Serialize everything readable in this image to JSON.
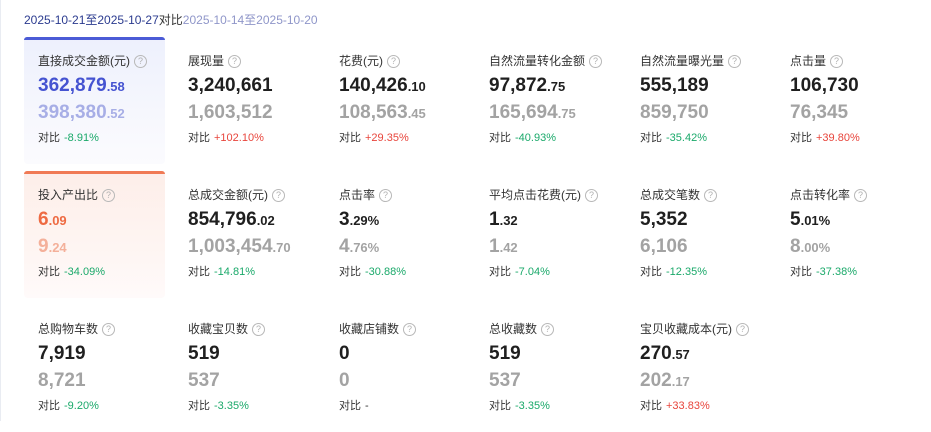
{
  "date_range": {
    "current": "2025-10-21至2025-10-27",
    "vs_label": "对比",
    "previous": "2025-10-14至2025-10-20"
  },
  "compare_label": "对比",
  "metrics": [
    {
      "title": "直接成交金额(元)",
      "cur_int": "362,879",
      "cur_dec": ".58",
      "prev_int": "398,380",
      "prev_dec": ".52",
      "delta": "-8.91%",
      "dir": "down",
      "selected": "blue"
    },
    {
      "title": "展现量",
      "cur_int": "3,240,661",
      "cur_dec": "",
      "prev_int": "1,603,512",
      "prev_dec": "",
      "delta": "+102.10%",
      "dir": "up",
      "selected": ""
    },
    {
      "title": "花费(元)",
      "cur_int": "140,426",
      "cur_dec": ".10",
      "prev_int": "108,563",
      "prev_dec": ".45",
      "delta": "+29.35%",
      "dir": "up",
      "selected": ""
    },
    {
      "title": "自然流量转化金额",
      "cur_int": "97,872",
      "cur_dec": ".75",
      "prev_int": "165,694",
      "prev_dec": ".75",
      "delta": "-40.93%",
      "dir": "down",
      "selected": ""
    },
    {
      "title": "自然流量曝光量",
      "cur_int": "555,189",
      "cur_dec": "",
      "prev_int": "859,750",
      "prev_dec": "",
      "delta": "-35.42%",
      "dir": "down",
      "selected": ""
    },
    {
      "title": "点击量",
      "cur_int": "106,730",
      "cur_dec": "",
      "prev_int": "76,345",
      "prev_dec": "",
      "delta": "+39.80%",
      "dir": "up",
      "selected": ""
    },
    {
      "title": "投入产出比",
      "cur_int": "6",
      "cur_dec": ".09",
      "prev_int": "9",
      "prev_dec": ".24",
      "delta": "-34.09%",
      "dir": "down",
      "selected": "orange"
    },
    {
      "title": "总成交金额(元)",
      "cur_int": "854,796",
      "cur_dec": ".02",
      "prev_int": "1,003,454",
      "prev_dec": ".70",
      "delta": "-14.81%",
      "dir": "down",
      "selected": ""
    },
    {
      "title": "点击率",
      "cur_int": "3",
      "cur_dec": ".29%",
      "prev_int": "4",
      "prev_dec": ".76%",
      "delta": "-30.88%",
      "dir": "down",
      "selected": ""
    },
    {
      "title": "平均点击花费(元)",
      "cur_int": "1",
      "cur_dec": ".32",
      "prev_int": "1",
      "prev_dec": ".42",
      "delta": "-7.04%",
      "dir": "down",
      "selected": ""
    },
    {
      "title": "总成交笔数",
      "cur_int": "5,352",
      "cur_dec": "",
      "prev_int": "6,106",
      "prev_dec": "",
      "delta": "-12.35%",
      "dir": "down",
      "selected": ""
    },
    {
      "title": "点击转化率",
      "cur_int": "5",
      "cur_dec": ".01%",
      "prev_int": "8",
      "prev_dec": ".00%",
      "delta": "-37.38%",
      "dir": "down",
      "selected": ""
    },
    {
      "title": "总购物车数",
      "cur_int": "7,919",
      "cur_dec": "",
      "prev_int": "8,721",
      "prev_dec": "",
      "delta": "-9.20%",
      "dir": "down",
      "selected": ""
    },
    {
      "title": "收藏宝贝数",
      "cur_int": "519",
      "cur_dec": "",
      "prev_int": "537",
      "prev_dec": "",
      "delta": "-3.35%",
      "dir": "down",
      "selected": ""
    },
    {
      "title": "收藏店铺数",
      "cur_int": "0",
      "cur_dec": "",
      "prev_int": "0",
      "prev_dec": "",
      "delta": "-",
      "dir": "none",
      "selected": ""
    },
    {
      "title": "总收藏数",
      "cur_int": "519",
      "cur_dec": "",
      "prev_int": "537",
      "prev_dec": "",
      "delta": "-3.35%",
      "dir": "down",
      "selected": ""
    },
    {
      "title": "宝贝收藏成本(元)",
      "cur_int": "270",
      "cur_dec": ".57",
      "prev_int": "202",
      "prev_dec": ".17",
      "delta": "+33.83%",
      "dir": "up",
      "selected": ""
    }
  ]
}
